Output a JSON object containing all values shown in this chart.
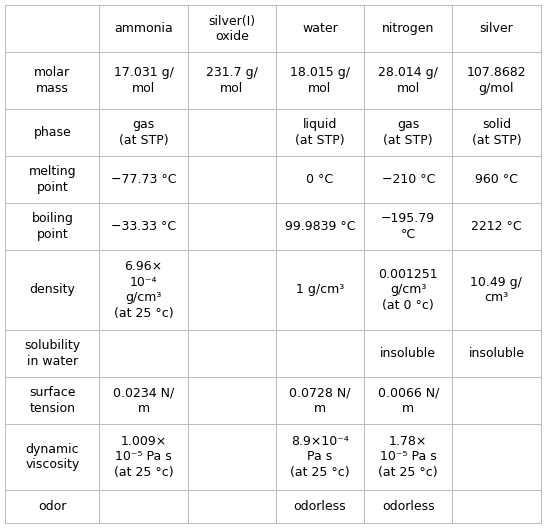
{
  "col_headers": [
    "",
    "ammonia",
    "silver(I)\noxide",
    "water",
    "nitrogen",
    "silver"
  ],
  "row_labels": [
    "molar\nmass",
    "phase",
    "melting\npoint",
    "boiling\npoint",
    "density",
    "solubility\nin water",
    "surface\ntension",
    "dynamic\nviscosity",
    "odor"
  ],
  "cells": [
    [
      "17.031 g/\nmol",
      "231.7 g/\nmol",
      "18.015 g/\nmol",
      "28.014 g/\nmol",
      "107.8682\ng/mol"
    ],
    [
      "gas\n(at STP)",
      "",
      "liquid\n(at STP)",
      "gas\n(at STP)",
      "solid\n(at STP)"
    ],
    [
      "−77.73 °C",
      "",
      "0 °C",
      "−210 °C",
      "960 °C"
    ],
    [
      "−33.33 °C",
      "",
      "99.9839 °C",
      "−195.79\n°C",
      "2212 °C"
    ],
    [
      "6.96×\n10⁻⁴\ng/cm³\n(at 25 °c)",
      "",
      "1 g/cm³",
      "0.001251\ng/cm³\n(at 0 °c)",
      "10.49 g/\ncm³"
    ],
    [
      "",
      "",
      "",
      "insoluble",
      "insoluble"
    ],
    [
      "0.0234 N/\nm",
      "",
      "0.0728 N/\nm",
      "0.0066 N/\nm",
      ""
    ],
    [
      "1.009×\n10⁻⁵ Pa s\n(at 25 °c)",
      "",
      "8.9×10⁻⁴\nPa s\n(at 25 °c)",
      "1.78×\n10⁻⁵ Pa s\n(at 25 °c)",
      ""
    ],
    [
      "",
      "",
      "odorless",
      "odorless",
      ""
    ]
  ],
  "bg_color": "#ffffff",
  "line_color": "#bbbbbb",
  "text_color": "#000000",
  "small_text_color": "#888888",
  "header_fontsize": 9.0,
  "cell_fontsize": 9.0,
  "small_fontsize": 7.0,
  "fig_width": 5.46,
  "fig_height": 5.28,
  "dpi": 100
}
